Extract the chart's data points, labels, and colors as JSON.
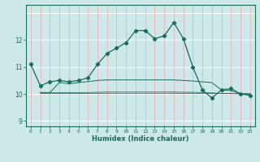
{
  "xlabel": "Humidex (Indice chaleur)",
  "x": [
    0,
    1,
    2,
    3,
    4,
    5,
    6,
    7,
    8,
    9,
    10,
    11,
    12,
    13,
    14,
    15,
    16,
    17,
    18,
    19,
    20,
    21,
    22,
    23
  ],
  "line1": [
    11.1,
    10.3,
    10.45,
    10.5,
    10.45,
    10.5,
    10.6,
    11.1,
    11.5,
    11.7,
    11.9,
    12.35,
    12.35,
    12.05,
    12.15,
    12.65,
    12.05,
    11.0,
    10.15,
    9.85,
    10.15,
    10.2,
    10.0,
    9.95
  ],
  "line2": [
    null,
    10.05,
    10.05,
    10.42,
    10.38,
    10.42,
    10.46,
    10.5,
    10.52,
    10.52,
    10.52,
    10.52,
    10.52,
    10.52,
    10.52,
    10.52,
    10.5,
    10.48,
    10.45,
    10.42,
    10.15,
    10.12,
    10.02,
    10.0
  ],
  "line3": [
    null,
    10.05,
    10.05,
    10.05,
    10.05,
    10.05,
    10.05,
    10.06,
    10.07,
    10.07,
    10.07,
    10.07,
    10.07,
    10.07,
    10.07,
    10.07,
    10.06,
    10.06,
    10.05,
    10.04,
    10.02,
    10.02,
    10.01,
    10.0
  ],
  "line4": [
    null,
    10.02,
    10.02,
    10.02,
    10.02,
    10.02,
    10.02,
    10.02,
    10.02,
    10.02,
    10.02,
    10.02,
    10.02,
    10.02,
    10.02,
    10.02,
    10.02,
    10.02,
    10.02,
    10.02,
    10.01,
    10.01,
    10.0,
    10.0
  ],
  "ylim": [
    8.8,
    13.3
  ],
  "yticks": [
    9,
    10,
    11,
    12
  ],
  "xlim": [
    -0.5,
    23.5
  ],
  "line_color": "#1a6b5a",
  "bg_color": "#cce8e8",
  "white_grid": "#ffffff",
  "red_grid": "#e8b4b4"
}
